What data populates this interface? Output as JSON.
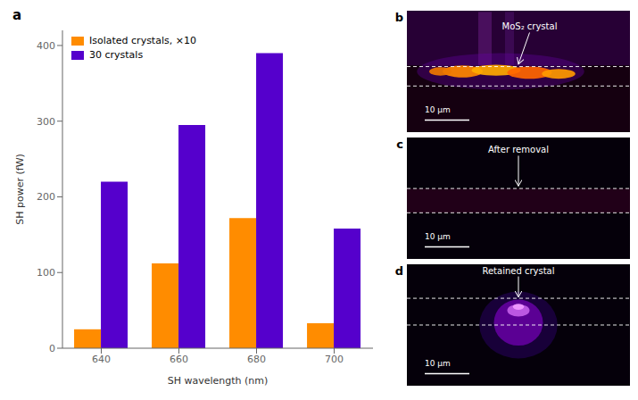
{
  "chart_data": [
    {
      "type": "bar",
      "title": "a",
      "xlabel": "SH wavelength (nm)",
      "ylabel": "SH power (fW)",
      "categories": [
        "640",
        "660",
        "680",
        "700"
      ],
      "series": [
        {
          "name": "Isolated crystals, ×10",
          "color": "#FF8C00",
          "values": [
            25,
            112,
            172,
            33
          ]
        },
        {
          "name": "30 crystals",
          "color": "#5500CC",
          "values": [
            220,
            295,
            390,
            158
          ]
        }
      ],
      "ylim": [
        0,
        420
      ],
      "yticks": [
        0,
        100,
        200,
        300,
        400
      ],
      "legend": "upper left",
      "grid": false
    },
    {
      "type": "image",
      "title": "b",
      "annotations": [
        "MoS₂ crystal",
        "10 μm"
      ]
    },
    {
      "type": "image",
      "title": "c",
      "annotations": [
        "After removal",
        "10 μm"
      ]
    },
    {
      "type": "image",
      "title": "d",
      "annotations": [
        "Retained crystal",
        "10 μm"
      ]
    }
  ]
}
